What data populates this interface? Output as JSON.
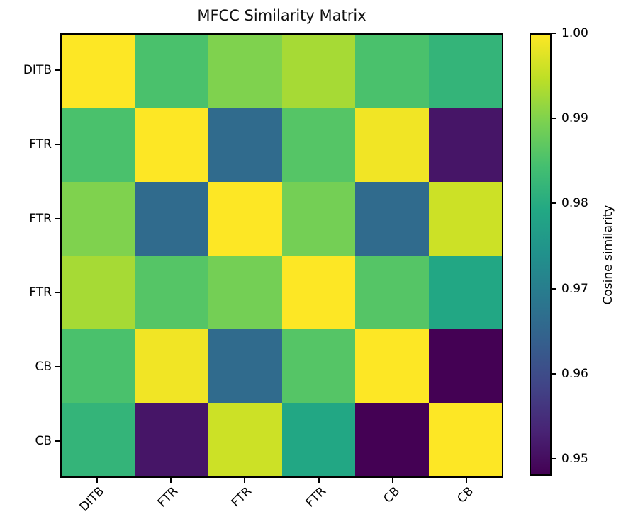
{
  "title": "MFCC Similarity Matrix",
  "chart_data": {
    "type": "heatmap",
    "title": "MFCC Similarity Matrix",
    "x_tick_labels": [
      "DITB",
      "FTR",
      "FTR",
      "FTR",
      "CB",
      "CB"
    ],
    "y_tick_labels": [
      "DITB",
      "FTR",
      "FTR",
      "FTR",
      "CB",
      "CB"
    ],
    "matrix": [
      [
        1.0,
        0.985,
        0.99,
        0.993,
        0.985,
        0.982
      ],
      [
        0.985,
        1.0,
        0.966,
        0.986,
        0.999,
        0.951
      ],
      [
        0.99,
        0.966,
        1.0,
        0.989,
        0.966,
        0.996
      ],
      [
        0.993,
        0.986,
        0.989,
        1.0,
        0.986,
        0.979
      ],
      [
        0.985,
        0.999,
        0.966,
        0.986,
        1.0,
        0.948
      ],
      [
        0.982,
        0.951,
        0.996,
        0.979,
        0.948,
        1.0
      ]
    ],
    "vmin": 0.948,
    "vmax": 1.0,
    "colormap": "viridis",
    "grid": false,
    "x_label_rotation_deg": 45,
    "colorbar": {
      "label": "Cosine similarity",
      "tick_labels": [
        "1.00",
        "0.99",
        "0.98",
        "0.97",
        "0.96",
        "0.95"
      ],
      "tick_values": [
        1.0,
        0.99,
        0.98,
        0.97,
        0.96,
        0.95
      ],
      "position": "right"
    }
  },
  "colors": {
    "background": "#ffffff",
    "axis": "#000000",
    "viridis_stops": [
      [
        0.0,
        "#440154"
      ],
      [
        0.1,
        "#482475"
      ],
      [
        0.2,
        "#414487"
      ],
      [
        0.3,
        "#355f8d"
      ],
      [
        0.4,
        "#2a788e"
      ],
      [
        0.5,
        "#21918c"
      ],
      [
        0.6,
        "#22a884"
      ],
      [
        0.7,
        "#44bf70"
      ],
      [
        0.8,
        "#7ad151"
      ],
      [
        0.9,
        "#bddf26"
      ],
      [
        1.0,
        "#fde725"
      ]
    ]
  }
}
